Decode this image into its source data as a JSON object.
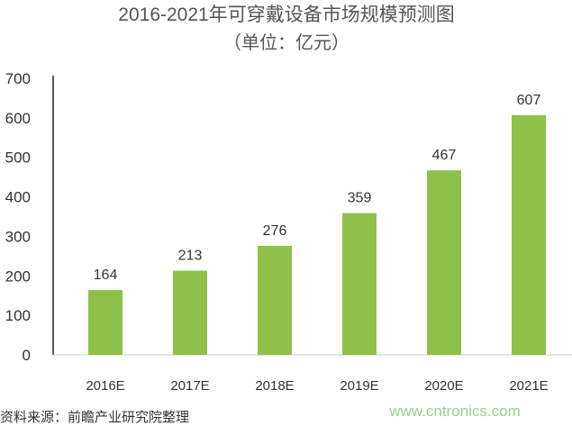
{
  "chart_data": {
    "type": "bar",
    "title": "2016-2021年可穿戴设备市场规模预测图",
    "subtitle": "（单位：亿元）",
    "categories": [
      "2016E",
      "2017E",
      "2018E",
      "2019E",
      "2020E",
      "2021E"
    ],
    "values": [
      164,
      213,
      276,
      359,
      467,
      607
    ],
    "ylim": [
      0,
      700
    ],
    "yticks": [
      0,
      100,
      200,
      300,
      400,
      500,
      600,
      700
    ],
    "grid": false,
    "bar_color": "#8fc04a",
    "xlabel": "",
    "ylabel": ""
  },
  "source": "资料来源：前瞻产业研究院整理",
  "watermark": "www.cntronics.com"
}
